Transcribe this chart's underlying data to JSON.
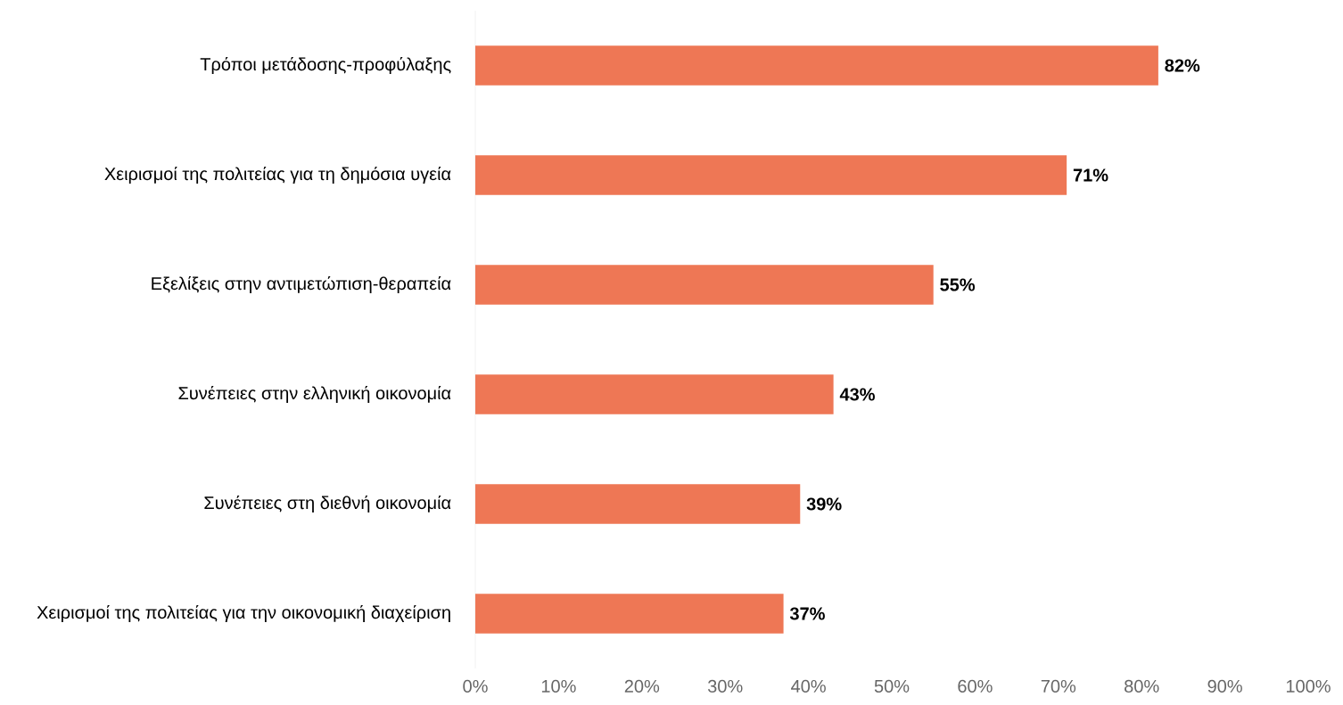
{
  "chart_data": {
    "type": "bar",
    "orientation": "horizontal",
    "categories": [
      "Τρόποι μετάδοσης-προφύλαξης",
      "Χειρισμοί της πολιτείας για τη δημόσια υγεία",
      "Εξελίξεις στην αντιμετώπιση-θεραπεία",
      "Συνέπειες στην ελληνική οικονομία",
      "Συνέπειες στη διεθνή οικονομία",
      "Χειρισμοί της πολιτείας για την οικονομική διαχείριση"
    ],
    "values": [
      82,
      71,
      55,
      43,
      39,
      37
    ],
    "value_labels": [
      "82%",
      "71%",
      "55%",
      "43%",
      "39%",
      "37%"
    ],
    "color": "#ee7755",
    "xlim": [
      0,
      100
    ],
    "xticks": [
      {
        "value": 0,
        "label": "0%"
      },
      {
        "value": 10,
        "label": "10%"
      },
      {
        "value": 20,
        "label": "20%"
      },
      {
        "value": 30,
        "label": "30%"
      },
      {
        "value": 40,
        "label": "40%"
      },
      {
        "value": 50,
        "label": "50%"
      },
      {
        "value": 60,
        "label": "60%"
      },
      {
        "value": 70,
        "label": "70%"
      },
      {
        "value": 80,
        "label": "80%"
      },
      {
        "value": 90,
        "label": "90%"
      },
      {
        "value": 100,
        "label": "100%"
      }
    ]
  }
}
